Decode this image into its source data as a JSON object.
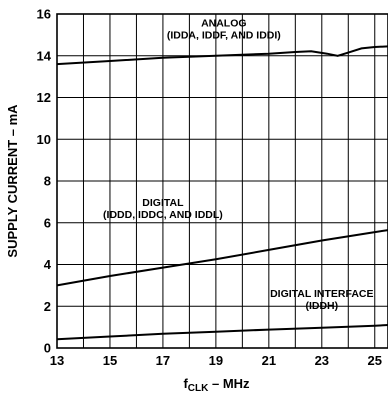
{
  "chart_data": {
    "type": "line",
    "xlabel": "f",
    "xlabel_sub": "CLK",
    "xlabel_suffix": " – MHz",
    "ylabel": "SUPPLY CURRENT – mA",
    "xlim": [
      13,
      25.5
    ],
    "ylim": [
      0,
      16
    ],
    "xticks": [
      "13",
      "15",
      "17",
      "19",
      "21",
      "23",
      "25"
    ],
    "yticks": [
      "0",
      "2",
      "4",
      "6",
      "8",
      "10",
      "12",
      "14",
      "16"
    ],
    "grid": true,
    "series": [
      {
        "name": "ANALOG (IDDA, IDDF, AND IDDI)",
        "label_lines": [
          "ANALOG",
          "(IDDA, IDDF, AND IDDI)"
        ],
        "x": [
          13,
          15,
          17,
          19,
          21,
          22,
          22.6,
          23.2,
          23.6,
          24.0,
          24.5,
          25,
          25.5
        ],
        "y": [
          13.6,
          13.75,
          13.9,
          14.0,
          14.1,
          14.18,
          14.22,
          14.1,
          14.0,
          14.15,
          14.35,
          14.42,
          14.45
        ]
      },
      {
        "name": "DIGITAL (IDDD, IDDC, AND IDDL)",
        "label_lines": [
          "DIGITAL",
          "(IDDD, IDDC, AND IDDL)"
        ],
        "x": [
          13,
          15,
          17,
          19,
          21,
          23,
          25,
          25.5
        ],
        "y": [
          3.0,
          3.45,
          3.85,
          4.25,
          4.7,
          5.15,
          5.55,
          5.65
        ]
      },
      {
        "name": "DIGITAL INTERFACE (IDDH)",
        "label_lines": [
          "DIGITAL INTERFACE",
          "(IDDH)"
        ],
        "x": [
          13,
          15,
          17,
          19,
          21,
          23,
          25,
          25.5
        ],
        "y": [
          0.42,
          0.55,
          0.68,
          0.78,
          0.88,
          0.97,
          1.07,
          1.1
        ]
      }
    ]
  }
}
